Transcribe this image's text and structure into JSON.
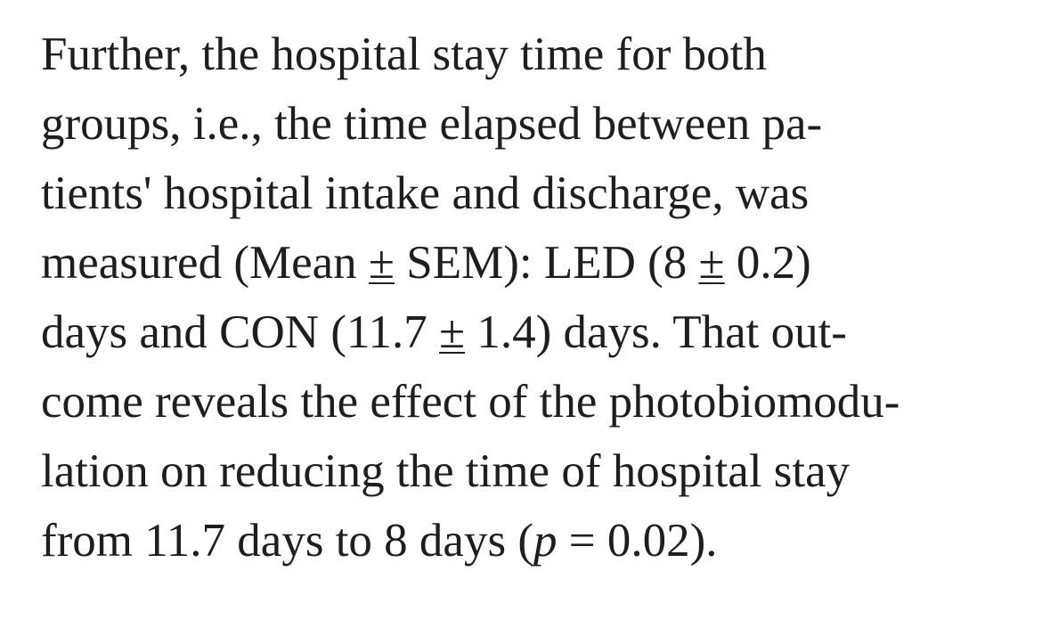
{
  "paragraph": {
    "line1": "Further, the hospital stay time for both",
    "line2": "groups, i.e., the time elapsed between pa-",
    "line3": "tients' hospital intake and discharge, was",
    "line4": {
      "a": "measured (Mean ",
      "pm1": "±",
      "b": " SEM): LED (8 ",
      "pm2": "±",
      "c": " 0.2)"
    },
    "line5": {
      "a": "days and CON (11.7 ",
      "pm": "±",
      "b": " 1.4) days. That out-"
    },
    "line6": "come reveals the effect of the photobiomodu-",
    "line7": "lation on reducing the time of hospital stay",
    "line8": {
      "a": "from 11.7 days to 8 days (",
      "p": "p",
      "b": " = 0.02)."
    }
  }
}
